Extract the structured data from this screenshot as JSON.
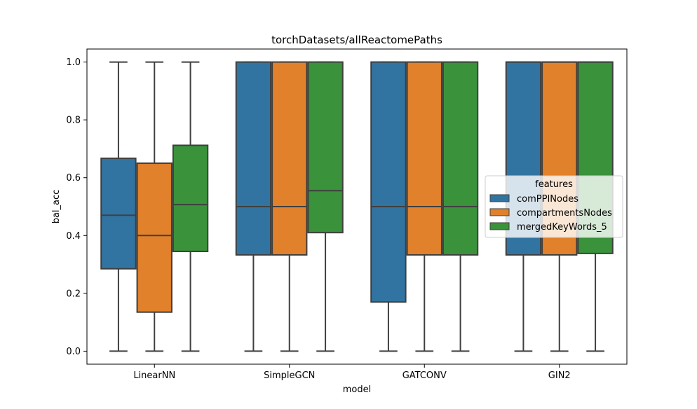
{
  "chart_data": {
    "type": "box",
    "title": "torchDatasets/allReactomePaths",
    "xlabel": "model",
    "ylabel": "bal_acc",
    "ylim": [
      -0.045,
      1.045
    ],
    "yticks": [
      "0.0",
      "0.2",
      "0.4",
      "0.6",
      "0.8",
      "1.0"
    ],
    "categories": [
      "LinearNN",
      "SimpleGCN",
      "GATCONV",
      "GIN2"
    ],
    "legend": {
      "title": "features",
      "placement": "center-right"
    },
    "series": [
      {
        "name": "comPPINodes",
        "color": "#3274a1",
        "boxes": [
          {
            "min": 0.0,
            "q1": 0.285,
            "median": 0.47,
            "q3": 0.667,
            "max": 1.0
          },
          {
            "min": 0.0,
            "q1": 0.333,
            "median": 0.5,
            "q3": 1.0,
            "max": 1.0
          },
          {
            "min": 0.0,
            "q1": 0.17,
            "median": 0.5,
            "q3": 1.0,
            "max": 1.0
          },
          {
            "min": 0.0,
            "q1": 0.333,
            "median": 1.0,
            "q3": 1.0,
            "max": 1.0
          }
        ]
      },
      {
        "name": "compartmentsNodes",
        "color": "#e1812c",
        "boxes": [
          {
            "min": 0.0,
            "q1": 0.135,
            "median": 0.4,
            "q3": 0.65,
            "max": 1.0
          },
          {
            "min": 0.0,
            "q1": 0.333,
            "median": 0.5,
            "q3": 1.0,
            "max": 1.0
          },
          {
            "min": 0.0,
            "q1": 0.333,
            "median": 0.5,
            "q3": 1.0,
            "max": 1.0
          },
          {
            "min": 0.0,
            "q1": 0.333,
            "median": 1.0,
            "q3": 1.0,
            "max": 1.0
          }
        ]
      },
      {
        "name": "mergedKeyWords_5",
        "color": "#3a923a",
        "boxes": [
          {
            "min": 0.0,
            "q1": 0.345,
            "median": 0.507,
            "q3": 0.712,
            "max": 1.0
          },
          {
            "min": 0.0,
            "q1": 0.41,
            "median": 0.555,
            "q3": 1.0,
            "max": 1.0
          },
          {
            "min": 0.0,
            "q1": 0.333,
            "median": 0.5,
            "q3": 1.0,
            "max": 1.0
          },
          {
            "min": 0.0,
            "q1": 0.338,
            "median": 1.0,
            "q3": 1.0,
            "max": 1.0
          }
        ]
      }
    ]
  }
}
